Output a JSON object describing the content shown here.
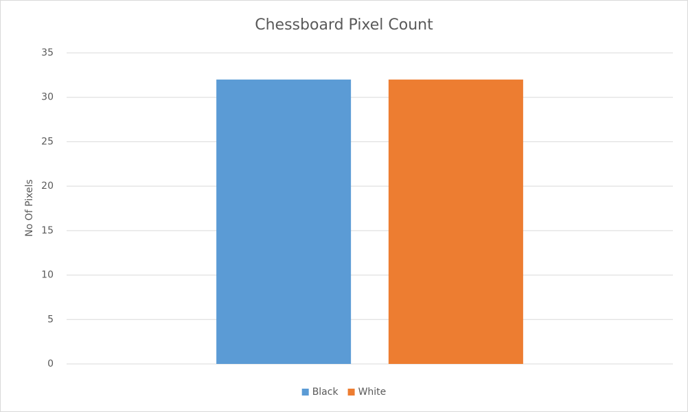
{
  "chart_data": {
    "type": "bar",
    "title": "Chessboard Pixel Count",
    "y_label": "No Of Pixels",
    "categories": [
      null
    ],
    "series": [
      {
        "name": "Black",
        "color": "#5b9bd5",
        "values": [
          32
        ]
      },
      {
        "name": "White",
        "color": "#ed7d31",
        "values": [
          32
        ]
      }
    ],
    "ylim": [
      0,
      35
    ],
    "yticks": [
      0,
      5,
      10,
      15,
      20,
      25,
      30,
      35
    ],
    "grid": true,
    "legend": "bottom"
  }
}
